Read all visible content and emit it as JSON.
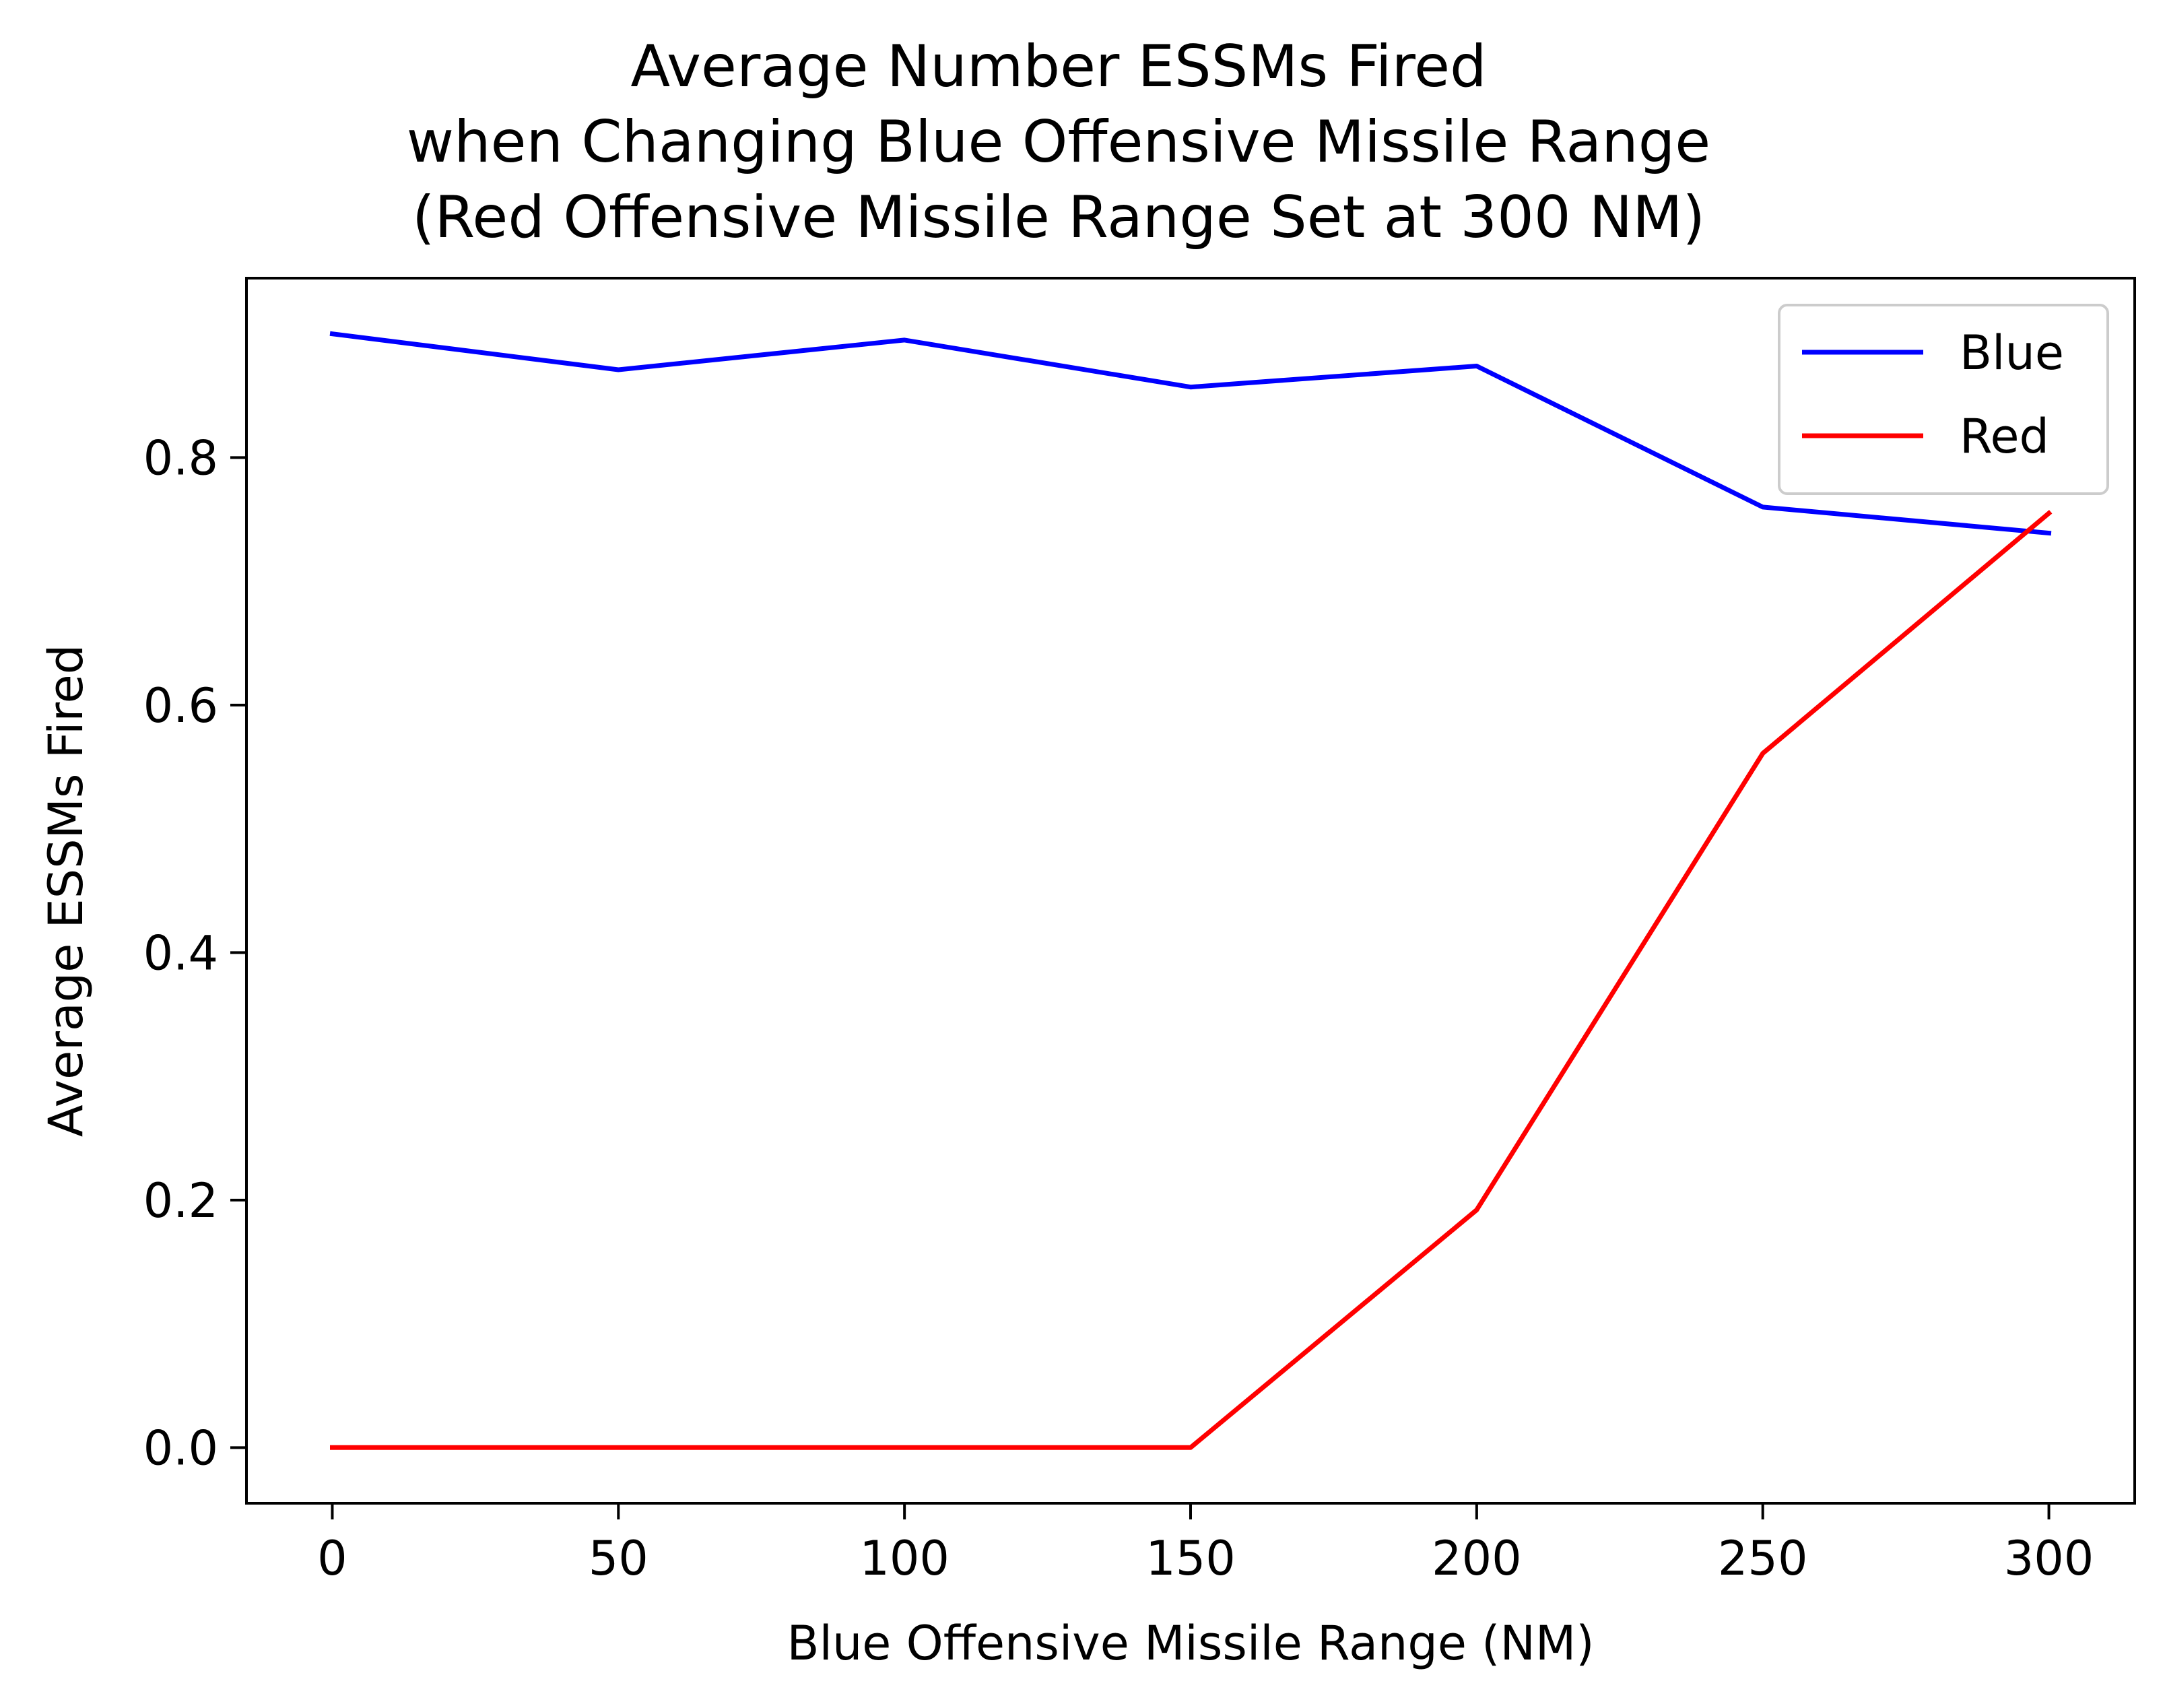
{
  "chart_data": {
    "type": "line",
    "title_lines": [
      "Average Number ESSMs Fired",
      "when Changing Blue Offensive Missile Range",
      "(Red Offensive Missile Range Set at 300 NM)"
    ],
    "xlabel": "Blue Offensive Missile Range (NM)",
    "ylabel": "Average ESSMs Fired",
    "x": [
      0,
      50,
      100,
      150,
      200,
      250,
      300
    ],
    "xlim": [
      -15,
      315
    ],
    "ylim": [
      -0.045,
      0.945
    ],
    "xticks": [
      0,
      50,
      100,
      150,
      200,
      250,
      300
    ],
    "xtick_labels": [
      "0",
      "50",
      "100",
      "150",
      "200",
      "250",
      "300"
    ],
    "yticks": [
      0.0,
      0.2,
      0.4,
      0.6,
      0.8
    ],
    "ytick_labels": [
      "0.0",
      "0.2",
      "0.4",
      "0.6",
      "0.8"
    ],
    "grid": false,
    "legend_position": "top-right",
    "series": [
      {
        "name": "Blue",
        "color": "#0000ff",
        "values": [
          0.9,
          0.871,
          0.895,
          0.857,
          0.874,
          0.76,
          0.739
        ]
      },
      {
        "name": "Red",
        "color": "#ff0000",
        "values": [
          0.0,
          0.0,
          0.0,
          0.0,
          0.192,
          0.561,
          0.755
        ]
      }
    ]
  }
}
